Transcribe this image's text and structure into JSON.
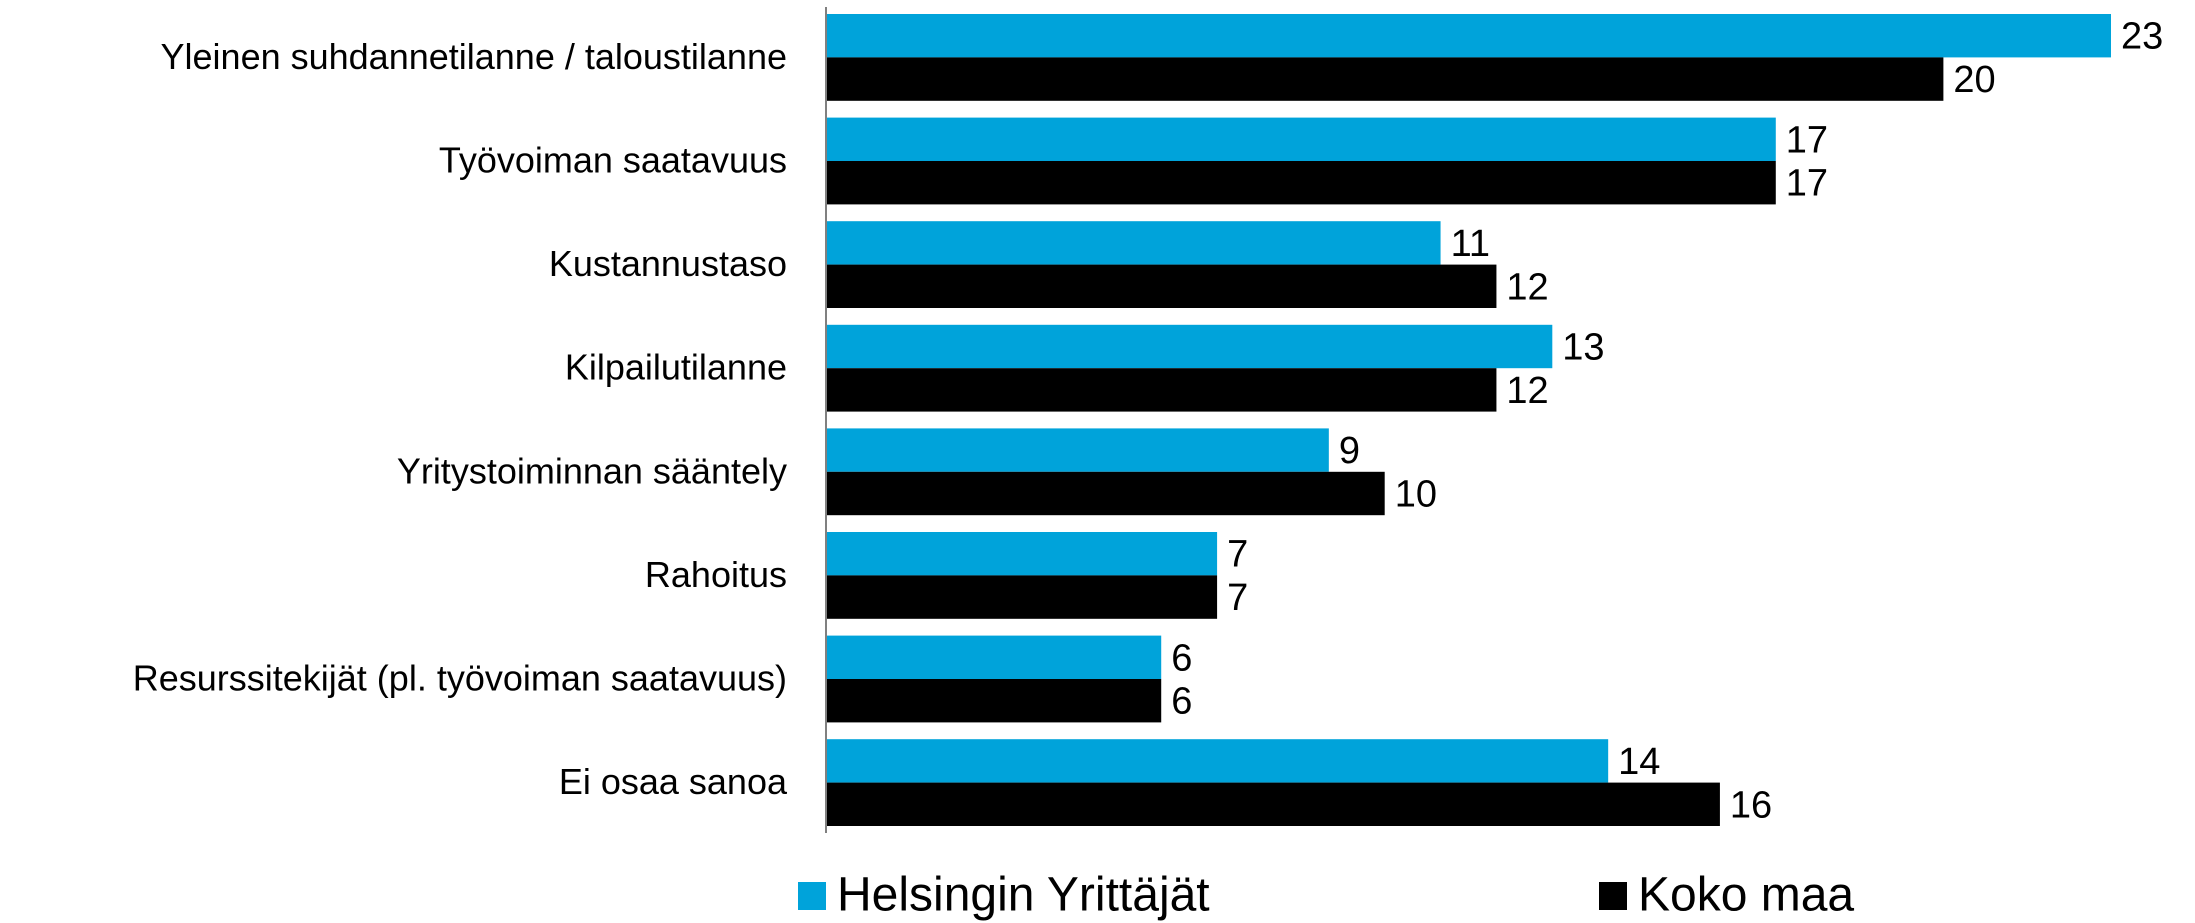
{
  "chart_data": {
    "type": "bar",
    "orientation": "horizontal",
    "categories": [
      "Yleinen suhdannetilanne / taloustilanne",
      "Työvoiman saatavuus",
      "Kustannustaso",
      "Kilpailutilanne",
      "Yritystoiminnan sääntely",
      "Rahoitus",
      "Resurssitekijät (pl. työvoiman saatavuus)",
      "Ei osaa sanoa"
    ],
    "series": [
      {
        "name": "Helsingin Yrittäjät",
        "color": "#00a3da",
        "values": [
          23,
          17,
          11,
          13,
          9,
          7,
          6,
          14
        ]
      },
      {
        "name": "Koko maa",
        "color": "#000000",
        "values": [
          20,
          17,
          12,
          12,
          10,
          7,
          6,
          16
        ]
      }
    ],
    "legend": "bottom"
  }
}
